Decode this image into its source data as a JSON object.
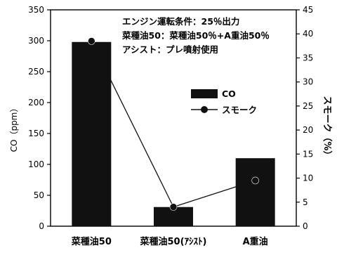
{
  "chart_data": {
    "type": "bar",
    "categories": [
      "菜種油50",
      "菜種油50(ｱｼｽﾄ)",
      "A重油"
    ],
    "series": [
      {
        "name": "CO",
        "type": "bar",
        "axis": "left",
        "values": [
          298,
          31,
          110
        ]
      },
      {
        "name": "スモーク",
        "type": "line",
        "axis": "right",
        "values": [
          38.5,
          4,
          9.5
        ]
      }
    ],
    "ylabel": "CO（ppm）",
    "ylabel_right": "スモーク（%）",
    "ylim": [
      0,
      350
    ],
    "ylim_right": [
      0,
      45
    ],
    "yticks": [
      "0",
      "50",
      "100",
      "150",
      "200",
      "250",
      "300",
      "350"
    ],
    "yticks_right": [
      "0",
      "5",
      "10",
      "15",
      "20",
      "25",
      "30",
      "35",
      "40",
      "45"
    ],
    "grid": false,
    "legend_position": "center-right",
    "annotations": [
      "エンジン運転条件：25％出力",
      "菜種油50：菜種油50％+A重油50％",
      "アシスト：プレ噴射使用"
    ],
    "colors": {
      "bar": "#111111",
      "line": "#111111",
      "marker": "#111111"
    }
  }
}
